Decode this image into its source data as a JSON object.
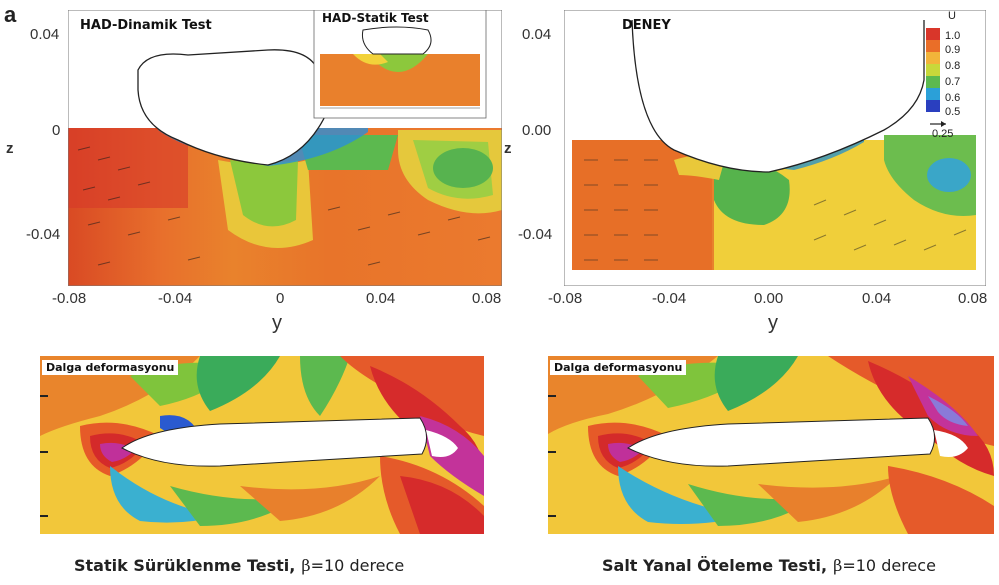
{
  "panel_label": "a",
  "colors": {
    "cmap": [
      "#2a3fbf",
      "#2b9be0",
      "#3fb46a",
      "#8ed43a",
      "#f2e23a",
      "#f3a23a",
      "#ea6324",
      "#d62b2b",
      "#c0309a"
    ]
  },
  "chart_data": [
    {
      "type": "heatmap",
      "title": "HAD-Dinamik Test",
      "inset_title": "HAD-Statik Test",
      "xlabel": "y",
      "ylabel": "z",
      "x_ticks": [
        "-0.08",
        "-0.04",
        "0",
        "0.04",
        "0.08"
      ],
      "y_ticks": [
        "0.04",
        "0",
        "-0.04"
      ],
      "xlim": [
        -0.08,
        0.08
      ],
      "ylim": [
        -0.06,
        0.045
      ]
    },
    {
      "type": "heatmap",
      "title": "DENEY",
      "xlabel": "y",
      "ylabel": "z",
      "x_ticks": [
        "-0.08",
        "-0.04",
        "0.00",
        "0.04",
        "0.08"
      ],
      "y_ticks": [
        "0.04",
        "0.00",
        "-0.04"
      ],
      "xlim": [
        -0.08,
        0.08
      ],
      "ylim": [
        -0.06,
        0.045
      ],
      "legend": {
        "title": "U",
        "values": [
          "1.0",
          "0.9",
          "0.8",
          "0.7",
          "0.6",
          "0.5"
        ],
        "vector_ref": "0.25"
      }
    }
  ],
  "wave_panels": [
    {
      "title": "Dalga deformasyonu",
      "caption_bold": "Statik Sürüklenme Testi,",
      "caption_symbol": "β",
      "caption_rest": "=10 derece"
    },
    {
      "title": "Dalga deformasyonu",
      "caption_bold": "Salt Yanal Öteleme Testi,",
      "caption_symbol": "β",
      "caption_rest": "=10 derece"
    }
  ]
}
